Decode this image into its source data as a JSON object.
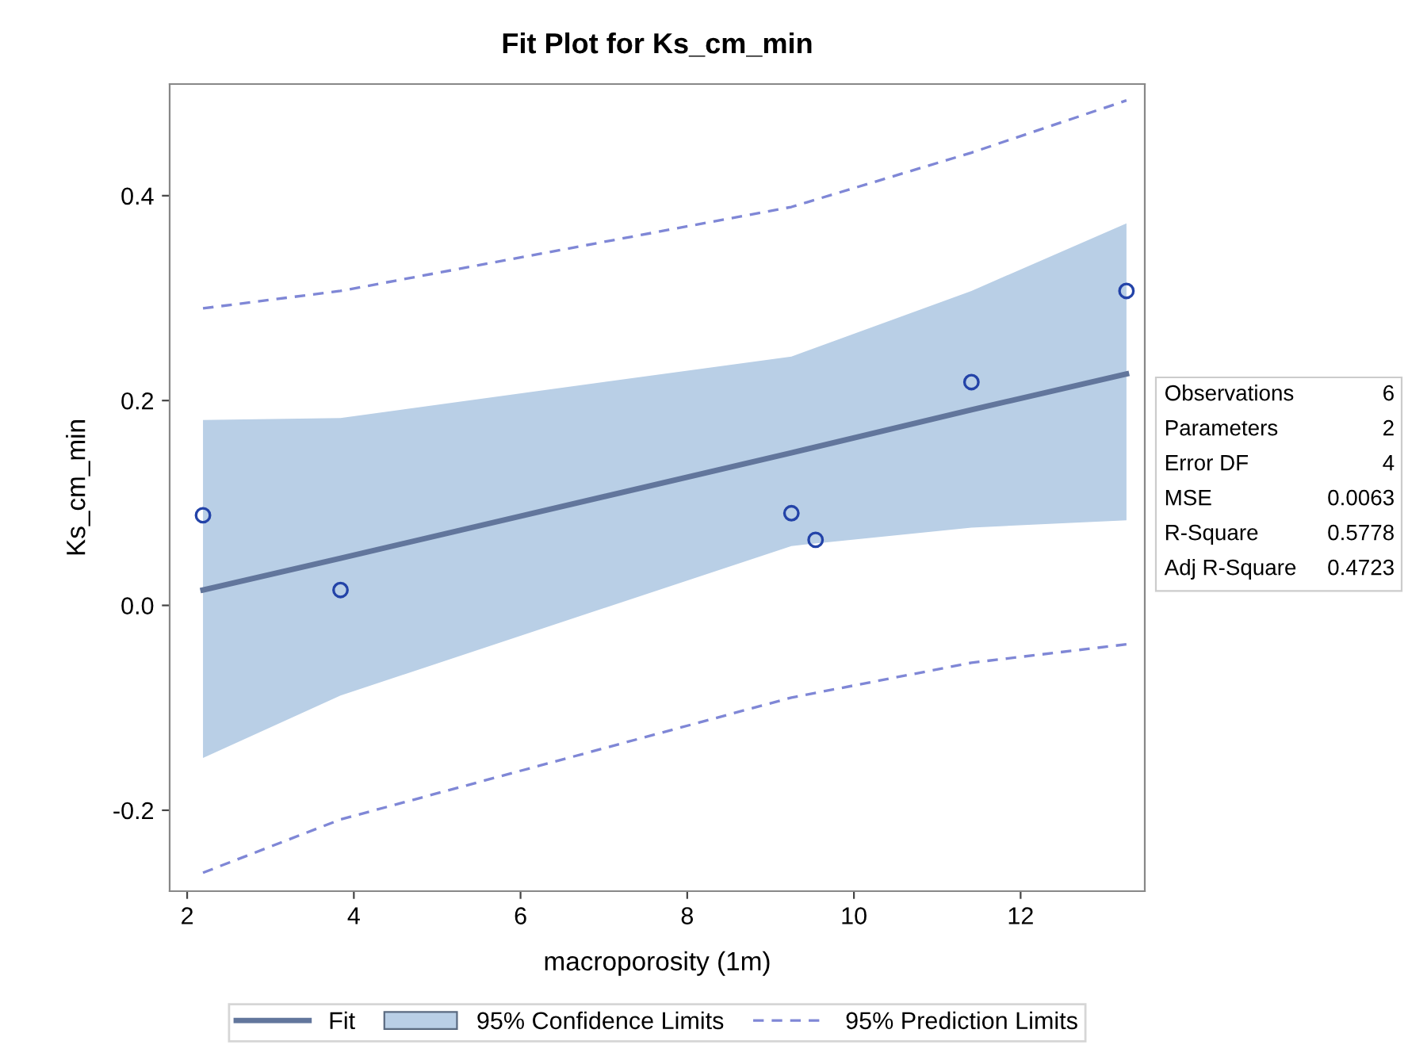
{
  "chart_data": {
    "type": "line",
    "title": "Fit Plot for Ks_cm_min",
    "xlabel": "macroporosity (1m)",
    "ylabel": "Ks_cm_min",
    "xlim": [
      1.79,
      13.49
    ],
    "ylim": [
      -0.279,
      0.509
    ],
    "xticks": [
      2,
      4,
      6,
      8,
      10,
      12
    ],
    "yticks": [
      {
        "value": -0.2,
        "label": "-0.2"
      },
      {
        "value": 0,
        "label": "0.0"
      },
      {
        "value": 0.2,
        "label": "0.2"
      },
      {
        "value": 0.4,
        "label": "0.4"
      }
    ],
    "grid": false,
    "legend": "bottom",
    "series": [
      {
        "name": "Fit",
        "line_style": "solid",
        "color": "#62769c",
        "x": [
          2.19,
          3.84,
          9.25,
          11.41,
          13.27
        ],
        "values": [
          0.015,
          0.046,
          0.149,
          0.191,
          0.226
        ],
        "lower": [
          -0.149,
          -0.088,
          0.058,
          0.076,
          0.083
        ],
        "upper": [
          0.181,
          0.183,
          0.243,
          0.307,
          0.373
        ]
      },
      {
        "name": "95% Confidence Limits",
        "type": "area",
        "color": "#b9cfe6"
      },
      {
        "name": "95% Prediction Limits",
        "type": "line",
        "line_style": "dashed",
        "color": "#7f87d6",
        "x": [
          2.19,
          3.84,
          9.25,
          11.41,
          13.27
        ],
        "values": [
          0.29,
          0.307,
          0.389,
          0.442,
          0.493
        ]
      },
      {
        "type": "line",
        "line_style": "dashed",
        "color": "#7f87d6",
        "x": [
          2.19,
          3.84,
          9.25,
          11.41,
          13.27
        ],
        "values": [
          -0.261,
          -0.209,
          -0.09,
          -0.056,
          -0.038
        ]
      },
      {
        "type": "scatter",
        "marker": "circle",
        "color": "#2343a8",
        "x": [
          2.19,
          3.84,
          9.25,
          9.54,
          11.41,
          13.27
        ],
        "values": [
          0.088,
          0.015,
          0.09,
          0.064,
          0.218,
          0.307
        ]
      }
    ],
    "annotations": [
      "Observations",
      "6",
      "Parameters",
      "2",
      "Error DF",
      "4",
      "MSE",
      "0.0063",
      "R-Square",
      "0.5778",
      "Adj R-Square",
      "0.4723"
    ]
  }
}
